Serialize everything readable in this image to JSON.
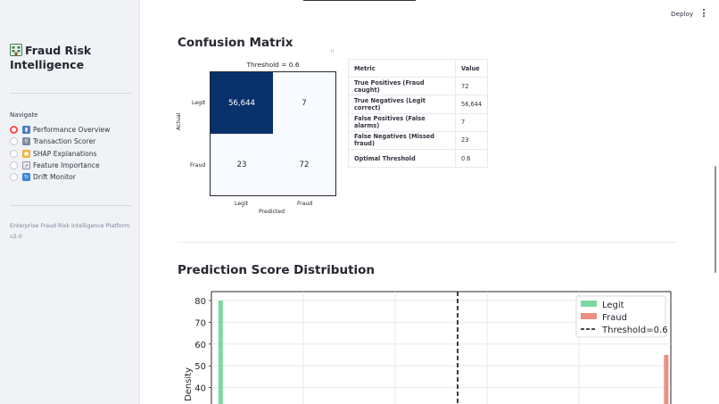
{
  "sidebar": {
    "title": "Fraud Risk Intelligence",
    "nav_title": "Navigate",
    "items": [
      {
        "label": "Performance Overview",
        "icon": "bar-chart-icon",
        "selected": true
      },
      {
        "label": "Transaction Scorer",
        "icon": "magnifier-icon",
        "selected": false
      },
      {
        "label": "SHAP Explanations",
        "icon": "lightbulb-icon",
        "selected": false
      },
      {
        "label": "Feature Importance",
        "icon": "line-chart-icon",
        "selected": false
      },
      {
        "label": "Drift Monitor",
        "icon": "refresh-icon",
        "selected": false
      }
    ],
    "footer": "Enterprise Fraud Risk Intelligence Platform v2.0"
  },
  "toolbar": {
    "deploy_label": "Deploy"
  },
  "main": {
    "confusion_heading": "Confusion Matrix",
    "distribution_heading": "Prediction Score Distribution"
  },
  "metrics_table": {
    "headers": [
      "Metric",
      "Value"
    ],
    "rows": [
      [
        "True Positives (Fraud caught)",
        "72"
      ],
      [
        "True Negatives (Legit correct)",
        "56,644"
      ],
      [
        "False Positives (False alarms)",
        "7"
      ],
      [
        "False Negatives (Missed fraud)",
        "23"
      ],
      [
        "Optimal Threshold",
        "0.6"
      ]
    ]
  },
  "chart_data": [
    {
      "type": "heatmap",
      "title": "Threshold = 0.6",
      "xlabel": "Predicted",
      "ylabel": "Actual",
      "x_categories": [
        "Legit",
        "Fraud"
      ],
      "y_categories": [
        "Legit",
        "Fraud"
      ],
      "values": [
        [
          56644,
          7
        ],
        [
          23,
          72
        ]
      ],
      "value_labels": [
        [
          "56,644",
          "7"
        ],
        [
          "23",
          "72"
        ]
      ],
      "colors": {
        "high": "#08306b",
        "low": "#f7fbff"
      }
    },
    {
      "type": "bar",
      "ylabel": "Density",
      "yticks": [
        40,
        50,
        60,
        70,
        80
      ],
      "ylim": [
        30,
        85
      ],
      "xlim": [
        0,
        1
      ],
      "grid": true,
      "legend": "top-right",
      "series": [
        {
          "name": "Legit",
          "color": "#7dd9a2",
          "bars": [
            {
              "x": 0.02,
              "height": 80
            }
          ]
        },
        {
          "name": "Fraud",
          "color": "#ec8f83",
          "bars": [
            {
              "x": 0.99,
              "height": 55
            }
          ]
        }
      ],
      "threshold": {
        "label": "Threshold=0.6",
        "x": 0.6
      }
    }
  ]
}
